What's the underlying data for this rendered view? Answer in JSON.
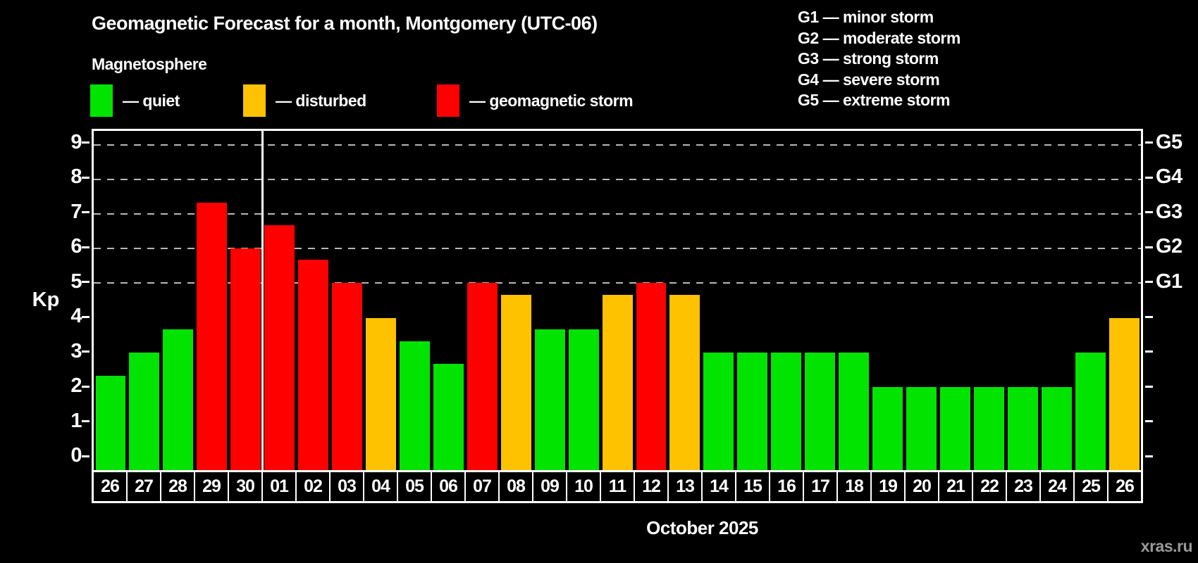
{
  "header": {
    "title": "Geomagnetic Forecast for a month, Montgomery (UTC-06)",
    "subtitle": "Magnetosphere"
  },
  "legend": {
    "items": [
      {
        "name": "quiet",
        "label": "— quiet",
        "color": "#00e400"
      },
      {
        "name": "disturbed",
        "label": "— disturbed",
        "color": "#ffc200"
      },
      {
        "name": "storm",
        "label": "— geomagnetic storm",
        "color": "#ff0000"
      }
    ]
  },
  "storm_scale": {
    "items": [
      {
        "label": "G1 — minor storm"
      },
      {
        "label": "G2 — moderate storm"
      },
      {
        "label": "G3 — strong storm"
      },
      {
        "label": "G4 — severe storm"
      },
      {
        "label": "G5 — extreme storm"
      }
    ]
  },
  "axes": {
    "y_label": "Kp",
    "y_ticks": [
      0,
      1,
      2,
      3,
      4,
      5,
      6,
      7,
      8,
      9
    ],
    "right_labels": [
      {
        "label": "G1",
        "kp": 5
      },
      {
        "label": "G2",
        "kp": 6
      },
      {
        "label": "G3",
        "kp": 7
      },
      {
        "label": "G4",
        "kp": 8
      },
      {
        "label": "G5",
        "kp": 9
      }
    ],
    "x_title": "October 2025"
  },
  "watermark": "xras.ru",
  "chart_data": {
    "type": "bar",
    "title": "Geomagnetic Forecast for a month, Montgomery (UTC-06)",
    "xlabel": "October 2025",
    "ylabel": "Kp",
    "ylim": [
      0,
      9
    ],
    "grid_levels": [
      5,
      6,
      7,
      8,
      9
    ],
    "legend_position": "top",
    "month_boundary_index": 5,
    "categories": [
      "26",
      "27",
      "28",
      "29",
      "30",
      "01",
      "02",
      "03",
      "04",
      "05",
      "06",
      "07",
      "08",
      "09",
      "10",
      "11",
      "12",
      "13",
      "14",
      "15",
      "16",
      "17",
      "18",
      "19",
      "20",
      "21",
      "22",
      "23",
      "24",
      "25",
      "26"
    ],
    "values": [
      2.33,
      3,
      3.67,
      7.33,
      6,
      6.67,
      5.67,
      5,
      4,
      3.33,
      2.67,
      5,
      4.67,
      3.67,
      3.67,
      4.67,
      5,
      4.67,
      3,
      3,
      3,
      3,
      3,
      2,
      2,
      2,
      2,
      2,
      2,
      3,
      4
    ],
    "statuses": [
      "quiet",
      "quiet",
      "quiet",
      "storm",
      "storm",
      "storm",
      "storm",
      "storm",
      "disturbed",
      "quiet",
      "quiet",
      "storm",
      "disturbed",
      "quiet",
      "quiet",
      "disturbed",
      "storm",
      "disturbed",
      "quiet",
      "quiet",
      "quiet",
      "quiet",
      "quiet",
      "quiet",
      "quiet",
      "quiet",
      "quiet",
      "quiet",
      "quiet",
      "quiet",
      "disturbed"
    ],
    "status_colors": {
      "quiet": "#00e400",
      "disturbed": "#ffc200",
      "storm": "#ff0000"
    }
  }
}
